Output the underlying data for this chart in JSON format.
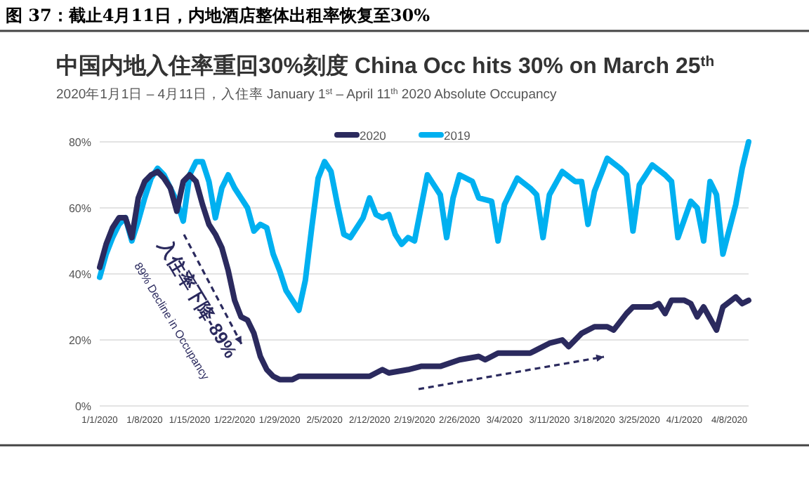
{
  "chart_data": {
    "type": "line",
    "title": "中国内地入住率重回30%刻度 China Occ hits 30% on March 25$^{th}$",
    "subtitle": "2020年1月1日 – 4月11日，入住率 January 1$^{st}$ – April 11$^{th}$ 2020 Absolute Occupancy",
    "annotations": [
      "图 37：截止4月11日，内地酒店整体出租率恢复至30%",
      "入住率下降-89%",
      "89% Decline in Occupancy"
    ],
    "series": [
      {
        "name": "2020",
        "color": "#2b2a5e",
        "x": [
          "2020-01-01",
          "2020-01-02",
          "2020-01-03",
          "2020-01-04",
          "2020-01-05",
          "2020-01-06",
          "2020-01-07",
          "2020-01-08",
          "2020-01-09",
          "2020-01-10",
          "2020-01-11",
          "2020-01-12",
          "2020-01-13",
          "2020-01-14",
          "2020-01-15",
          "2020-01-16",
          "2020-01-17",
          "2020-01-18",
          "2020-01-19",
          "2020-01-20",
          "2020-01-21",
          "2020-01-22",
          "2020-01-23",
          "2020-01-24",
          "2020-01-25",
          "2020-01-26",
          "2020-01-27",
          "2020-01-28",
          "2020-01-29",
          "2020-01-30",
          "2020-01-31",
          "2020-02-01",
          "2020-02-02",
          "2020-02-05",
          "2020-02-10",
          "2020-02-12",
          "2020-02-14",
          "2020-02-15",
          "2020-02-18",
          "2020-02-20",
          "2020-02-23",
          "2020-02-26",
          "2020-02-29",
          "2020-03-01",
          "2020-03-03",
          "2020-03-06",
          "2020-03-08",
          "2020-03-09",
          "2020-03-11",
          "2020-03-13",
          "2020-03-14",
          "2020-03-16",
          "2020-03-18",
          "2020-03-20",
          "2020-03-21",
          "2020-03-23",
          "2020-03-24",
          "2020-03-26",
          "2020-03-27",
          "2020-03-28",
          "2020-03-29",
          "2020-03-30",
          "2020-04-01",
          "2020-04-02",
          "2020-04-03",
          "2020-04-04",
          "2020-04-06",
          "2020-04-07",
          "2020-04-09",
          "2020-04-10",
          "2020-04-11"
        ],
        "values": [
          42,
          49,
          54,
          57,
          57,
          51,
          63,
          68,
          70,
          71,
          69,
          66,
          59,
          68,
          70,
          68,
          61,
          55,
          52,
          48,
          41,
          32,
          27,
          26,
          22,
          15,
          11,
          9,
          8,
          8,
          8,
          9,
          9,
          9,
          9,
          9,
          11,
          10,
          11,
          12,
          12,
          14,
          15,
          14,
          16,
          16,
          16,
          17,
          19,
          20,
          18,
          22,
          24,
          24,
          23,
          28,
          30,
          30,
          30,
          31,
          28,
          32,
          32,
          31,
          27,
          30,
          23,
          30,
          33,
          31,
          32
        ]
      },
      {
        "name": "2019",
        "color": "#00b0f0",
        "x": [
          "2020-01-01",
          "2020-01-02",
          "2020-01-03",
          "2020-01-04",
          "2020-01-05",
          "2020-01-06",
          "2020-01-07",
          "2020-01-08",
          "2020-01-09",
          "2020-01-10",
          "2020-01-11",
          "2020-01-12",
          "2020-01-13",
          "2020-01-14",
          "2020-01-15",
          "2020-01-16",
          "2020-01-17",
          "2020-01-18",
          "2020-01-19",
          "2020-01-20",
          "2020-01-21",
          "2020-01-22",
          "2020-01-23",
          "2020-01-24",
          "2020-01-25",
          "2020-01-26",
          "2020-01-27",
          "2020-01-28",
          "2020-01-29",
          "2020-01-30",
          "2020-01-31",
          "2020-02-01",
          "2020-02-02",
          "2020-02-03",
          "2020-02-04",
          "2020-02-05",
          "2020-02-06",
          "2020-02-07",
          "2020-02-08",
          "2020-02-09",
          "2020-02-10",
          "2020-02-11",
          "2020-02-12",
          "2020-02-13",
          "2020-02-14",
          "2020-02-15",
          "2020-02-16",
          "2020-02-17",
          "2020-02-18",
          "2020-02-19",
          "2020-02-20",
          "2020-02-21",
          "2020-02-22",
          "2020-02-23",
          "2020-02-24",
          "2020-02-25",
          "2020-02-26",
          "2020-02-28",
          "2020-02-29",
          "2020-03-02",
          "2020-03-03",
          "2020-03-04",
          "2020-03-06",
          "2020-03-08",
          "2020-03-09",
          "2020-03-10",
          "2020-03-11",
          "2020-03-13",
          "2020-03-15",
          "2020-03-16",
          "2020-03-17",
          "2020-03-18",
          "2020-03-20",
          "2020-03-22",
          "2020-03-23",
          "2020-03-24",
          "2020-03-25",
          "2020-03-27",
          "2020-03-29",
          "2020-03-30",
          "2020-03-31",
          "2020-04-02",
          "2020-04-03",
          "2020-04-04",
          "2020-04-05",
          "2020-04-06",
          "2020-04-07",
          "2020-04-09",
          "2020-04-10",
          "2020-04-11"
        ],
        "values": [
          39,
          46,
          51,
          55,
          57,
          50,
          56,
          63,
          69,
          72,
          70,
          66,
          62,
          56,
          70,
          74,
          74,
          68,
          57,
          66,
          70,
          66,
          63,
          60,
          53,
          55,
          54,
          46,
          41,
          35,
          32,
          29,
          38,
          54,
          69,
          74,
          71,
          61,
          52,
          51,
          54,
          57,
          63,
          58,
          57,
          58,
          52,
          49,
          51,
          50,
          60,
          70,
          67,
          64,
          51,
          63,
          70,
          68,
          63,
          62,
          50,
          61,
          69,
          66,
          64,
          51,
          64,
          71,
          68,
          68,
          55,
          65,
          75,
          72,
          70,
          53,
          67,
          73,
          70,
          68,
          51,
          62,
          60,
          50,
          68,
          64,
          46,
          61,
          72,
          80
        ]
      }
    ],
    "xlim": [
      "2020-01-01",
      "2020-04-11"
    ],
    "xticks": [
      {
        "value": "2020-01-01",
        "label": "1/1/2020"
      },
      {
        "value": "2020-01-08",
        "label": "1/8/2020"
      },
      {
        "value": "2020-01-15",
        "label": "1/15/2020"
      },
      {
        "value": "2020-01-22",
        "label": "1/22/2020"
      },
      {
        "value": "2020-01-29",
        "label": "1/29/2020"
      },
      {
        "value": "2020-02-05",
        "label": "2/5/2020"
      },
      {
        "value": "2020-02-12",
        "label": "2/12/2020"
      },
      {
        "value": "2020-02-19",
        "label": "2/19/2020"
      },
      {
        "value": "2020-02-26",
        "label": "2/26/2020"
      },
      {
        "value": "2020-03-04",
        "label": "3/4/2020"
      },
      {
        "value": "2020-03-11",
        "label": "3/11/2020"
      },
      {
        "value": "2020-03-18",
        "label": "3/18/2020"
      },
      {
        "value": "2020-03-25",
        "label": "3/25/2020"
      },
      {
        "value": "2020-04-01",
        "label": "4/1/2020"
      },
      {
        "value": "2020-04-08",
        "label": "4/8/2020"
      }
    ],
    "ylim": [
      0,
      80
    ],
    "yticks": [
      {
        "value": 0,
        "label": "0%"
      },
      {
        "value": 20,
        "label": "20%"
      },
      {
        "value": 40,
        "label": "40%"
      },
      {
        "value": 60,
        "label": "60%"
      },
      {
        "value": 80,
        "label": "80%"
      }
    ],
    "grid": "y",
    "legend": "top",
    "marker": "none",
    "line_style": "solid"
  }
}
